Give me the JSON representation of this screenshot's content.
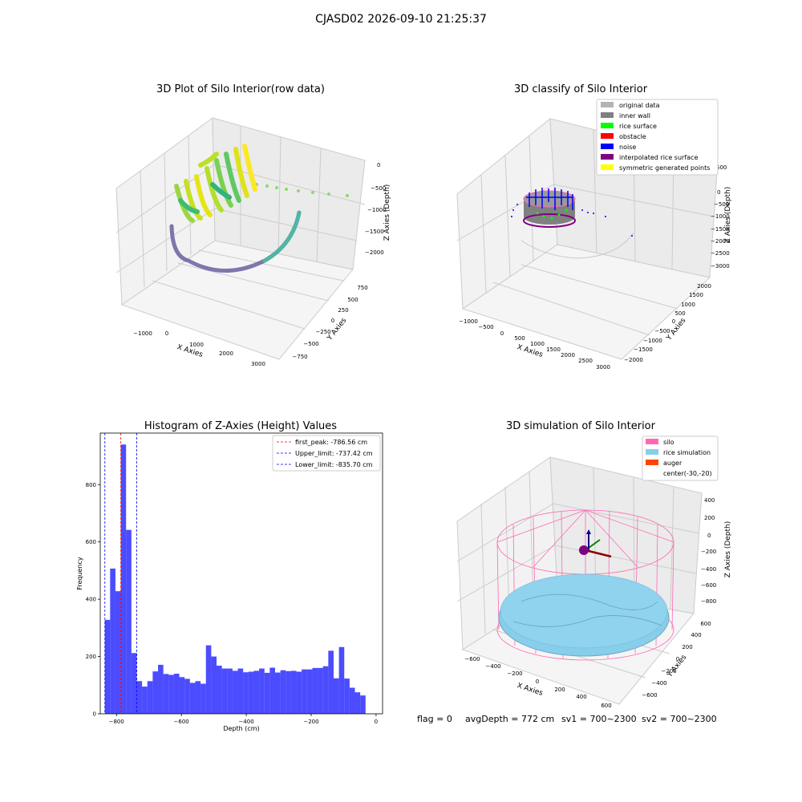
{
  "suptitle": "CJASD02 2026-09-10 21:25:37",
  "panel_raw": {
    "title": "3D Plot of Silo Interior(row data)",
    "xlabel": "X Axies",
    "ylabel": "Y Axies",
    "zlabel": "Z Axies (Depth)",
    "xticks": [
      "−1000",
      "0",
      "1000",
      "2000",
      "3000"
    ],
    "yticks": [
      "750",
      "500",
      "250",
      "0",
      "−250",
      "−500",
      "−750"
    ],
    "zticks": [
      "0",
      "−500",
      "−1000",
      "−1500",
      "−2000"
    ]
  },
  "panel_classify": {
    "title": "3D classify of Silo Interior",
    "xlabel": "X Axies",
    "ylabel": "Y Axies",
    "zlabel": "Z Axies (Depth)",
    "xticks": [
      "−1000",
      "−500",
      "0",
      "500",
      "1000",
      "1500",
      "2000",
      "2500",
      "3000"
    ],
    "yticks": [
      "2000",
      "1500",
      "1000",
      "500",
      "0",
      "−500",
      "−1000",
      "−1500",
      "−2000"
    ],
    "zticks": [
      "500",
      "0",
      "−500",
      "−1000",
      "−1500",
      "−2000",
      "−2500",
      "−3000"
    ],
    "legend": [
      {
        "label": "original data",
        "color": "#b3b3b3"
      },
      {
        "label": "inner wall",
        "color": "#808080"
      },
      {
        "label": "rice surface",
        "color": "#00ff00"
      },
      {
        "label": "obstacle",
        "color": "#ff0000"
      },
      {
        "label": "noise",
        "color": "#0000ff"
      },
      {
        "label": "interpolated rice surface",
        "color": "#800080"
      },
      {
        "label": "symmetric generated points",
        "color": "#ffff00"
      }
    ]
  },
  "panel_sim": {
    "title": "3D simulation of Silo Interior",
    "xlabel": "X Axies",
    "ylabel": "Y Axies",
    "zlabel": "Z Axies (Depth)",
    "xticks": [
      "−600",
      "−400",
      "−200",
      "0",
      "200",
      "400",
      "600"
    ],
    "yticks": [
      "600",
      "400",
      "200",
      "0",
      "−200",
      "−400",
      "−600"
    ],
    "zticks": [
      "400",
      "200",
      "0",
      "−200",
      "−400",
      "−600",
      "−800"
    ],
    "legend": [
      {
        "label": "silo",
        "color": "#ff69b4"
      },
      {
        "label": "rice simulation",
        "color": "#87ceeb"
      },
      {
        "label": "auger",
        "color": "#ff4500"
      },
      {
        "label": "center(-30,-20)",
        "color": ""
      }
    ]
  },
  "footer": {
    "flag": "flag = 0",
    "avg": "avgDepth = 772 cm",
    "sv1": "sv1 = 700~2300",
    "sv2": "sv2 = 700~2300"
  },
  "chart_data": {
    "type": "bar",
    "title": "Histogram of Z-Axies (Height) Values",
    "xlabel": "Depth (cm)",
    "ylabel": "Frequency",
    "xlim": [
      -850,
      20
    ],
    "ylim": [
      0,
      980
    ],
    "bin_edges_start": -836,
    "bin_width": 16.4,
    "values": [
      328,
      507,
      428,
      940,
      642,
      212,
      114,
      95,
      114,
      148,
      171,
      139,
      136,
      140,
      128,
      122,
      108,
      114,
      105,
      239,
      200,
      168,
      158,
      158,
      150,
      158,
      145,
      147,
      150,
      158,
      143,
      161,
      144,
      152,
      149,
      150,
      147,
      155,
      155,
      160,
      160,
      166,
      220,
      124,
      233,
      123,
      91,
      75,
      64
    ],
    "bar_color": "#0000ff",
    "xticks": [
      -800,
      -600,
      -400,
      -200,
      0
    ],
    "yticks": [
      0,
      200,
      400,
      600,
      800
    ],
    "lines": [
      {
        "label": "first_peak: -786.56 cm",
        "x": -786.56,
        "color": "#ff0000"
      },
      {
        "label": "Upper_limit: -737.42 cm",
        "x": -737.42,
        "color": "#0000ff"
      },
      {
        "label": "Lower_limit: -835.70 cm",
        "x": -835.7,
        "color": "#0000ff"
      }
    ],
    "legend_position": "top-right"
  }
}
